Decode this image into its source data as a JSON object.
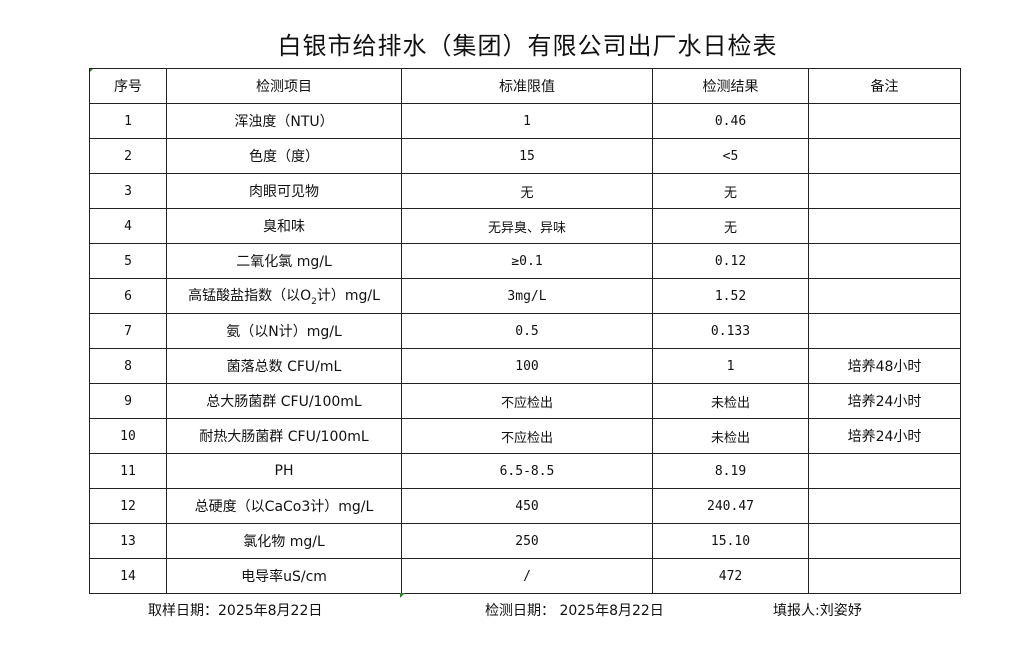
{
  "title": "白银市给排水（集团）有限公司出厂水日检表",
  "table": {
    "headers": [
      "序号",
      "检测项目",
      "标准限值",
      "检测结果",
      "备注"
    ],
    "rows": [
      {
        "no": "1",
        "item": "浑浊度（NTU）",
        "limit": "1",
        "result": "0.46",
        "note": ""
      },
      {
        "no": "2",
        "item": "色度（度）",
        "limit": "15",
        "result": "<5",
        "note": ""
      },
      {
        "no": "3",
        "item": "肉眼可见物",
        "limit": "无",
        "result": "无",
        "note": ""
      },
      {
        "no": "4",
        "item": "臭和味",
        "limit": "无异臭、异味",
        "result": "无",
        "note": ""
      },
      {
        "no": "5",
        "item": "二氧化氯 mg/L",
        "limit": "≥0.1",
        "result": "0.12",
        "note": ""
      },
      {
        "no": "6",
        "item_pre": "高锰酸盐指数（以O",
        "item_sub": "2",
        "item_post": "计）mg/L",
        "limit": "3mg/L",
        "result": "1.52",
        "note": ""
      },
      {
        "no": "7",
        "item": "氨（以N计）mg/L",
        "limit": "0.5",
        "result": "0.133",
        "note": ""
      },
      {
        "no": "8",
        "item": "菌落总数 CFU/mL",
        "limit": "100",
        "result": "1",
        "note": "培养48小时"
      },
      {
        "no": "9",
        "item": "总大肠菌群 CFU/100mL",
        "limit": "不应检出",
        "result": "未检出",
        "note": "培养24小时"
      },
      {
        "no": "10",
        "item": "耐热大肠菌群 CFU/100mL",
        "limit": "不应检出",
        "result": "未检出",
        "note": "培养24小时"
      },
      {
        "no": "11",
        "item": "PH",
        "limit": "6.5-8.5",
        "result": "8.19",
        "note": ""
      },
      {
        "no": "12",
        "item": "总硬度（以CaCo3计）mg/L",
        "limit": "450",
        "result": "240.47",
        "note": ""
      },
      {
        "no": "13",
        "item": "氯化物 mg/L",
        "limit": "250",
        "result": "15.10",
        "note": ""
      },
      {
        "no": "14",
        "item": "电导率uS/cm",
        "limit": "/",
        "result": "472",
        "note": ""
      }
    ]
  },
  "footer": {
    "sampling_date": "取样日期：2025年8月22日",
    "test_date": "检测日期： 2025年8月22日",
    "reporter": "填报人:刘姿妤"
  },
  "colors": {
    "cell_marker": "#2a8a2a"
  }
}
